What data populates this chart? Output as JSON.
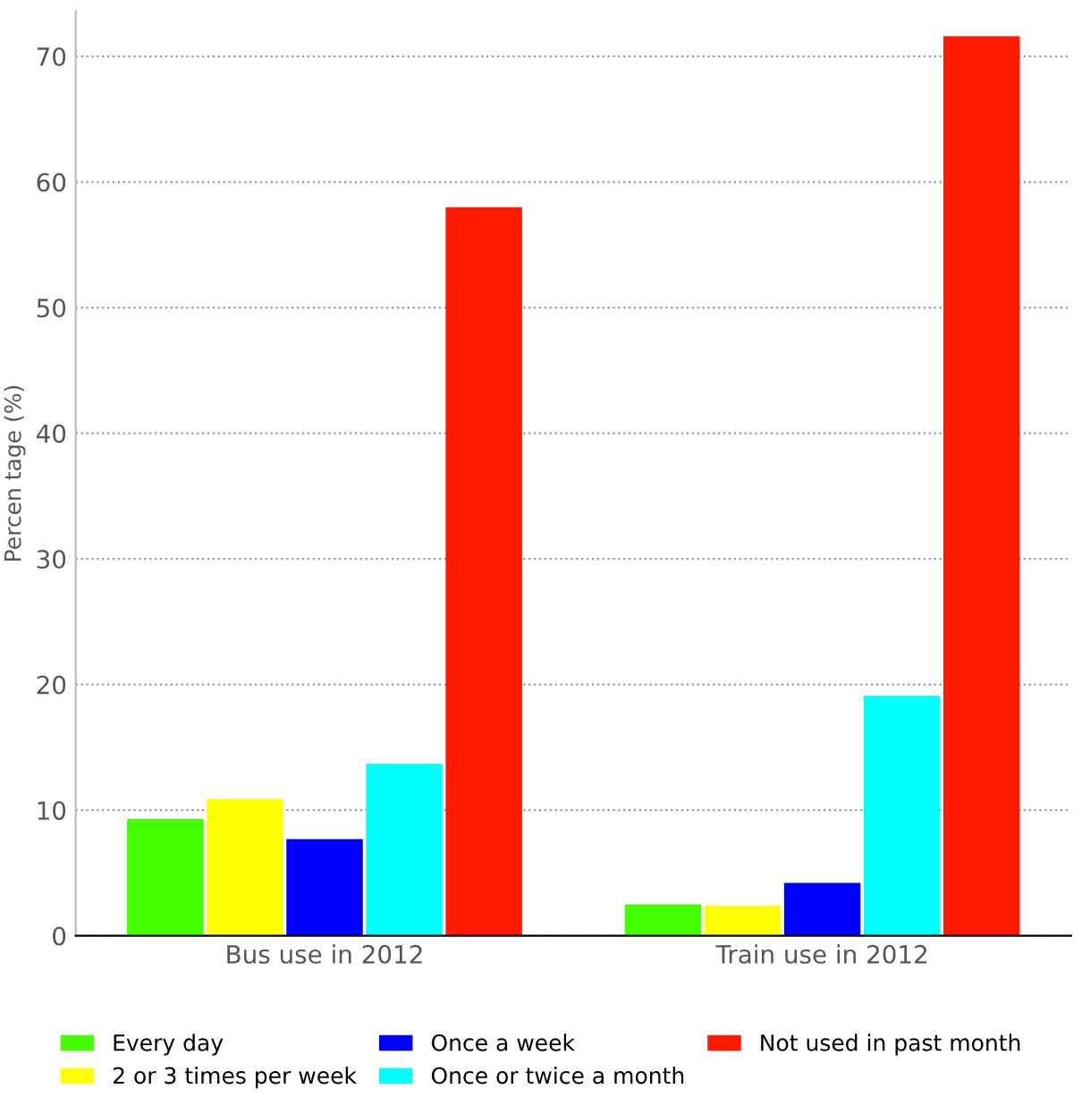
{
  "chart_data": {
    "type": "bar",
    "ylabel": "Percen tage (%)",
    "categories": [
      "Bus use in 2012",
      "Train use in 2012"
    ],
    "series": [
      {
        "name": "Every day",
        "color": "#44ff00",
        "values": [
          9.3,
          2.5
        ]
      },
      {
        "name": "2 or 3 times per week",
        "color": "#ffff00",
        "values": [
          10.9,
          2.4
        ]
      },
      {
        "name": "Once a week",
        "color": "#0000ff",
        "values": [
          7.7,
          4.2
        ]
      },
      {
        "name": "Once or twice a month",
        "color": "#00ffff",
        "values": [
          13.7,
          19.1
        ]
      },
      {
        "name": "Not used in past month",
        "color": "#ff1a00",
        "values": [
          58.0,
          71.6
        ]
      }
    ],
    "ylim": [
      0,
      73.6
    ],
    "yticks": [
      0,
      10,
      20,
      30,
      40,
      50,
      60,
      70
    ],
    "grid": "y",
    "legend": "bottom"
  }
}
